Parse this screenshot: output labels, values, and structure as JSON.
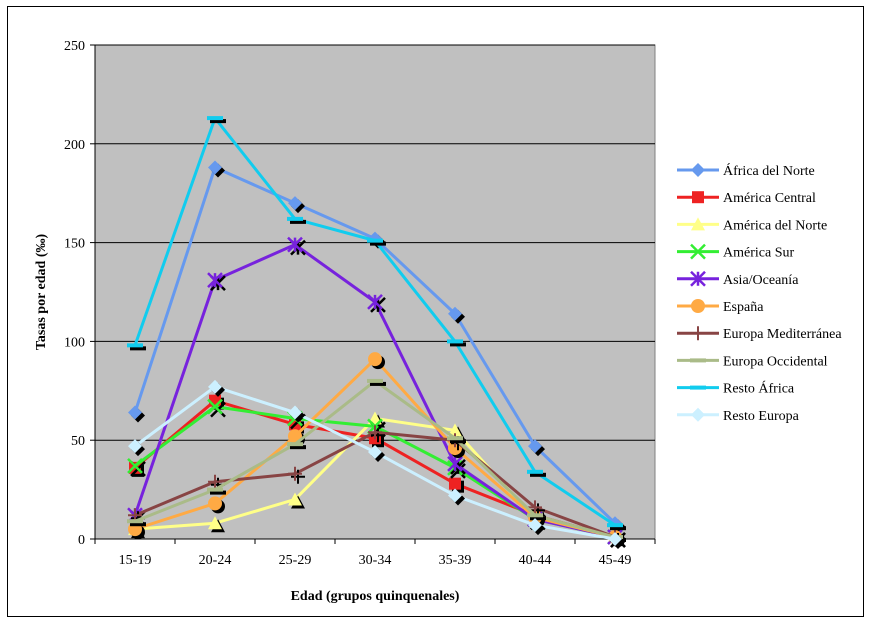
{
  "chart_data": {
    "type": "line",
    "title": "",
    "xlabel": "Edad (grupos quinquenales)",
    "ylabel": "Tasas por edad (‰)",
    "categories": [
      "15-19",
      "20-24",
      "25-29",
      "30-34",
      "35-39",
      "40-44",
      "45-49"
    ],
    "ylim": [
      0,
      250
    ],
    "yticks": [
      0,
      50,
      100,
      150,
      200,
      250
    ],
    "grid": "horizontal",
    "legend_position": "right",
    "plot_background": "#c0c0c0",
    "series": [
      {
        "name": "África del Norte",
        "color": "#6699ee",
        "marker": "diamond",
        "values": [
          64,
          188,
          170,
          152,
          114,
          47,
          8
        ]
      },
      {
        "name": "América Central",
        "color": "#ee2222",
        "marker": "square",
        "values": [
          36,
          70,
          58,
          51,
          28,
          12,
          1
        ]
      },
      {
        "name": "América del Norte",
        "color": "#ffff88",
        "marker": "triangle",
        "values": [
          5,
          8,
          20,
          61,
          55,
          10,
          1
        ]
      },
      {
        "name": "América Sur",
        "color": "#33ee33",
        "marker": "x",
        "values": [
          37,
          67,
          61,
          57,
          36,
          10,
          1
        ]
      },
      {
        "name": "Asia/Oceanía",
        "color": "#7722dd",
        "marker": "star",
        "values": [
          12,
          131,
          149,
          120,
          38,
          10,
          1
        ]
      },
      {
        "name": "España",
        "color": "#ffaa44",
        "marker": "circle",
        "values": [
          5,
          18,
          52,
          91,
          46,
          11,
          1
        ]
      },
      {
        "name": "Europa Mediterránea",
        "color": "#884444",
        "marker": "plus",
        "values": [
          12,
          29,
          33,
          54,
          50,
          16,
          1
        ]
      },
      {
        "name": "Europa Occidental",
        "color": "#aabb88",
        "marker": "dash",
        "values": [
          9,
          25,
          48,
          80,
          51,
          12,
          1
        ]
      },
      {
        "name": "Resto África",
        "color": "#11ccee",
        "marker": "dash",
        "values": [
          98,
          213,
          162,
          151,
          100,
          34,
          7
        ]
      },
      {
        "name": "Resto Europa",
        "color": "#ccf0ff",
        "marker": "diamond",
        "values": [
          47,
          77,
          64,
          44,
          22,
          7,
          0
        ]
      }
    ]
  }
}
